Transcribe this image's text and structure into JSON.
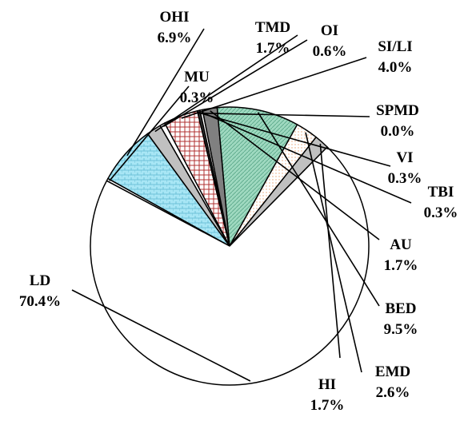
{
  "chart_data": {
    "type": "pie",
    "title": "",
    "series": [
      {
        "name": "",
        "slices": [
          {
            "label": "MU",
            "value_label": "0.3%",
            "value": 0.3,
            "color": "#ffffff"
          },
          {
            "label": "OHI",
            "value_label": "6.9%",
            "value": 6.9,
            "color": "#a8e6f5"
          },
          {
            "label": "TMD",
            "value_label": "1.7%",
            "value": 1.7,
            "color": "#c0c0c0"
          },
          {
            "label": "OI",
            "value_label": "0.6%",
            "value": 0.6,
            "color": "#ffffff"
          },
          {
            "label": "SI/LI",
            "value_label": "4.0%",
            "value": 4.0,
            "color": "#f3d6d6"
          },
          {
            "label": "SPMD",
            "value_label": "0.0%",
            "value": 0.0,
            "color": "#ffffff"
          },
          {
            "label": "VI",
            "value_label": "0.3%",
            "value": 0.3,
            "color": "#333333"
          },
          {
            "label": "TBI",
            "value_label": "0.3%",
            "value": 0.3,
            "color": "#ffffff"
          },
          {
            "label": "AU",
            "value_label": "1.7%",
            "value": 1.7,
            "color": "#808080"
          },
          {
            "label": "BED",
            "value_label": "9.5%",
            "value": 9.5,
            "color": "#a6dcc6"
          },
          {
            "label": "EMD",
            "value_label": "2.6%",
            "value": 2.6,
            "color": "#fff4ec"
          },
          {
            "label": "HI",
            "value_label": "1.7%",
            "value": 1.7,
            "color": "#c0c0c0"
          },
          {
            "label": "LD",
            "value_label": "70.4%",
            "value": 70.4,
            "color": "#ffffff"
          }
        ]
      }
    ],
    "legend": "none",
    "labels": "outside with leader lines"
  }
}
